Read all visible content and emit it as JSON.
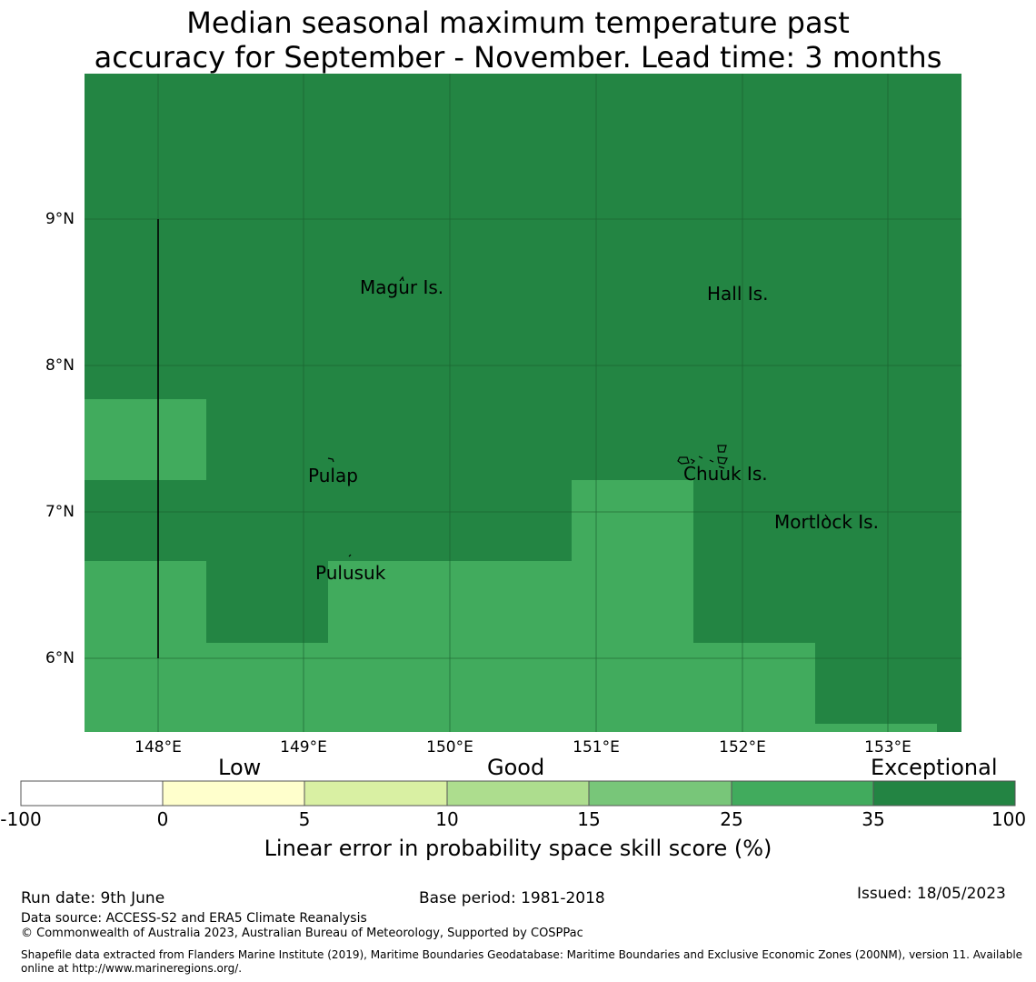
{
  "title": {
    "line1": "Median seasonal maximum temperature past",
    "line2": "accuracy for September - November. Lead time: 3 months"
  },
  "map": {
    "latitude_labels": [
      "9°N",
      "8°N",
      "7°N",
      "6°N"
    ],
    "longitude_labels": [
      "148°E",
      "149°E",
      "150°E",
      "151°E",
      "152°E",
      "153°E"
    ],
    "places": {
      "magur": "Magur Is.",
      "hall": "Hall Is.",
      "pulap": "Pulap",
      "chuuk": "Chuuk Is.",
      "mortlock": "Mortlock Is.",
      "pulusuk": "Pulusuk"
    },
    "colors": {
      "exceptional": "#238543",
      "high_good": "#41ab5d",
      "grid": "#1b5e2e"
    }
  },
  "colorbar": {
    "categories": {
      "low": "Low",
      "good": "Good",
      "exceptional": "Exceptional"
    },
    "ticks": [
      "-100",
      "0",
      "5",
      "10",
      "15",
      "25",
      "35",
      "100"
    ],
    "colors": [
      "#ffffff",
      "#ffffcc",
      "#d9f0a3",
      "#addd8e",
      "#78c679",
      "#41ab5d",
      "#238443"
    ],
    "label": "Linear error in probability space skill score (%)"
  },
  "footer": {
    "run_date": "Run date: 9th June",
    "base_period": "Base period: 1981-2018",
    "issued": "Issued: 18/05/2023",
    "data_source": "Data source: ACCESS-S2 and ERA5 Climate Reanalysis",
    "copyright": "© Commonwealth of Australia 2023, Australian Bureau of Meteorology, Supported by COSPPac",
    "shapefile_line1": "Shapefile data extracted from Flanders Marine Institute (2019), Maritime Boundaries Geodatabase: Maritime Boundaries and Exclusive Economic Zones (200NM), version 11. Available",
    "shapefile_line2": "online at http://www.marineregions.org/."
  }
}
